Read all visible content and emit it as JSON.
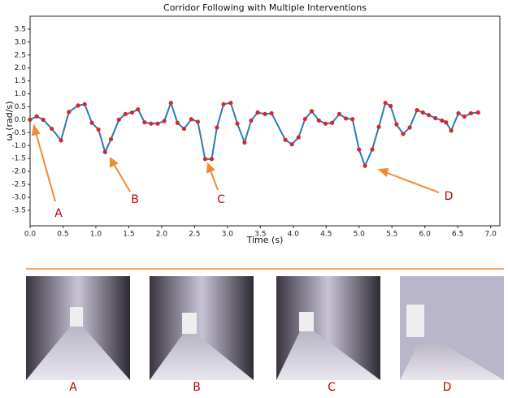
{
  "chart_data": {
    "type": "line",
    "title": "Corridor Following with Multiple Interventions",
    "x_label": "Time (s)",
    "y_label": "ω (rad/s)",
    "color": "#2a7ab8",
    "marker_color": "#d62728",
    "x": [
      0.0,
      0.1,
      0.2,
      0.33,
      0.47,
      0.59,
      0.73,
      0.83,
      0.94,
      1.04,
      1.14,
      1.23,
      1.35,
      1.45,
      1.55,
      1.64,
      1.74,
      1.84,
      1.94,
      2.04,
      2.14,
      2.24,
      2.34,
      2.45,
      2.55,
      2.66,
      2.76,
      2.84,
      2.94,
      3.05,
      3.15,
      3.26,
      3.36,
      3.46,
      3.57,
      3.67,
      3.88,
      3.98,
      4.08,
      4.18,
      4.28,
      4.39,
      4.49,
      4.59,
      4.7,
      4.8,
      4.9,
      5.0,
      5.09,
      5.2,
      5.3,
      5.4,
      5.48,
      5.57,
      5.67,
      5.77,
      5.88,
      5.97,
      6.06,
      6.16,
      6.26,
      6.32,
      6.4,
      6.51,
      6.6,
      6.7,
      6.81
    ],
    "values": [
      0.0,
      0.13,
      0.0,
      -0.35,
      -0.8,
      0.3,
      0.55,
      0.6,
      -0.12,
      -0.38,
      -1.25,
      -0.75,
      0.0,
      0.22,
      0.28,
      0.4,
      -0.1,
      -0.15,
      -0.15,
      -0.05,
      0.65,
      -0.12,
      -0.35,
      0.02,
      -0.08,
      -1.52,
      -1.52,
      -0.3,
      0.6,
      0.65,
      -0.15,
      -0.88,
      -0.03,
      0.28,
      0.22,
      0.25,
      -0.78,
      -0.95,
      -0.68,
      0.03,
      0.33,
      -0.03,
      -0.15,
      -0.12,
      0.22,
      0.05,
      0.02,
      -1.15,
      -1.78,
      -1.15,
      -0.28,
      0.65,
      0.53,
      -0.18,
      -0.55,
      -0.3,
      0.37,
      0.28,
      0.18,
      0.06,
      -0.03,
      -0.1,
      -0.42,
      0.25,
      0.12,
      0.25,
      0.28
    ],
    "xlim": [
      0,
      7.14
    ],
    "ylim": [
      -4.1,
      4.0
    ],
    "xticks": [
      {
        "value": 0,
        "label": "0.0"
      },
      0.5,
      {
        "value": 1,
        "label": "1.0"
      },
      1.5,
      {
        "value": 2,
        "label": "2.0"
      },
      2.5,
      {
        "value": 3,
        "label": "3.0"
      },
      3.5,
      {
        "value": 4,
        "label": "4.0"
      },
      4.5,
      {
        "value": 5,
        "label": "5.0"
      },
      5.5,
      {
        "value": 6,
        "label": "6.0"
      },
      6.5,
      {
        "value": 7,
        "label": "7.0"
      }
    ],
    "yticks": [
      -3.5,
      {
        "value": -3,
        "label": "-3.0"
      },
      -2.5,
      {
        "value": -2,
        "label": "-2.0"
      },
      -1.5,
      {
        "value": -1,
        "label": "-1.0"
      },
      -0.5,
      {
        "value": 0,
        "label": "0.0"
      },
      0.5,
      {
        "value": 1,
        "label": "1.0"
      },
      1.5,
      {
        "value": 2,
        "label": "2.0"
      },
      2.5,
      {
        "value": 3,
        "label": "3.0"
      },
      3.5
    ],
    "annotations": [
      "A",
      "B",
      "C",
      "D"
    ]
  },
  "images": {
    "labels": [
      "A",
      "B",
      "C",
      "D"
    ]
  }
}
